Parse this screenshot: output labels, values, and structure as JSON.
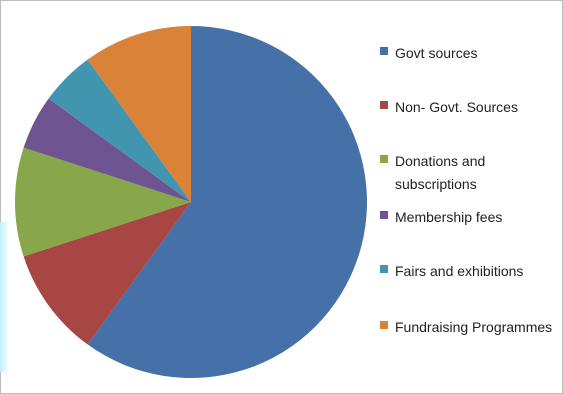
{
  "chart_data": {
    "type": "pie",
    "title": "",
    "start_angle_deg": 0,
    "direction": "clockwise",
    "slices": [
      {
        "label": "Govt sources",
        "value": 60,
        "color": "#4571A8"
      },
      {
        "label": "Non- Govt. Sources",
        "value": 10,
        "color": "#A84644"
      },
      {
        "label": "Donations and subscriptions",
        "value": 10,
        "color": "#88A74A"
      },
      {
        "label": "Membership fees",
        "value": 5,
        "color": "#6E5591"
      },
      {
        "label": "Fairs and exhibitions",
        "value": 5,
        "color": "#4295AE"
      },
      {
        "label": "Fundraising Programmes",
        "value": 10,
        "color": "#DA8237"
      }
    ],
    "legend_position": "right"
  }
}
